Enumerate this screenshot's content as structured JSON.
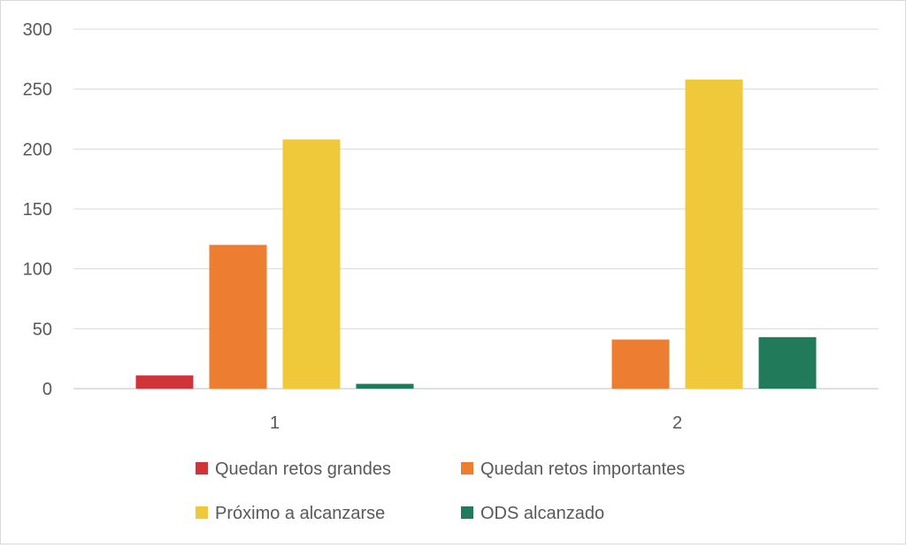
{
  "chart_data": {
    "type": "bar",
    "title": "",
    "xlabel": "",
    "ylabel": "",
    "categories": [
      "1",
      "2"
    ],
    "ylim": [
      0,
      300
    ],
    "yticks": [
      0,
      50,
      100,
      150,
      200,
      250,
      300
    ],
    "grid": true,
    "legend_position": "bottom",
    "series": [
      {
        "name": "Quedan retos grandes",
        "color": "#d13438",
        "values": [
          11,
          0
        ]
      },
      {
        "name": "Quedan retos importantes",
        "color": "#ed7d31",
        "values": [
          120,
          41
        ]
      },
      {
        "name": "Próximo a alcanzarse",
        "color": "#f0c93a",
        "values": [
          208,
          258
        ]
      },
      {
        "name": "ODS alcanzado",
        "color": "#217a5a",
        "values": [
          4,
          43
        ]
      }
    ]
  }
}
